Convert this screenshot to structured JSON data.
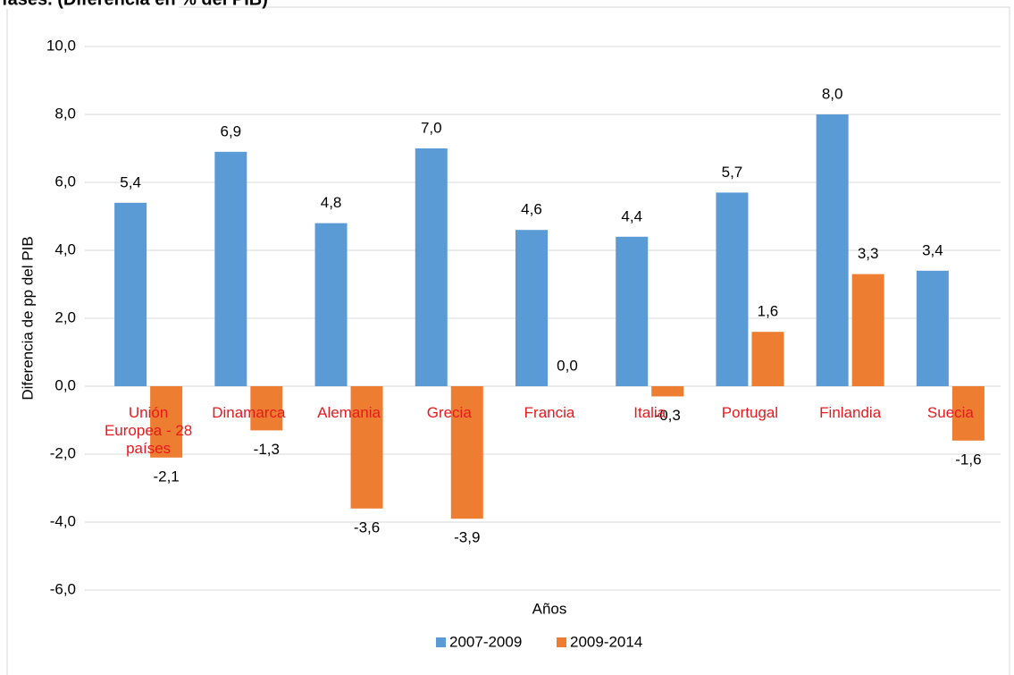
{
  "chart_data": {
    "type": "bar",
    "title": "fases. (Diferencia en % del PIB)",
    "y_label": "Diferencia de pp del PIB",
    "x_label": "Años",
    "categories": [
      "Unión Europea - 28 países",
      "Dinamarca",
      "Alemania",
      "Grecia",
      "Francia",
      "Italia",
      "Portugal",
      "Finlandia",
      "Suecia"
    ],
    "series": [
      {
        "name": "2007-2009",
        "color": "#5b9bd5",
        "values": [
          5.4,
          6.9,
          4.8,
          7.0,
          4.6,
          4.4,
          5.7,
          8.0,
          3.4
        ],
        "value_labels": [
          "5,4",
          "6,9",
          "4,8",
          "7,0",
          "4,6",
          "4,4",
          "5,7",
          "8,0",
          "3,4"
        ]
      },
      {
        "name": "2009-2014",
        "color": "#ed7d31",
        "values": [
          -2.1,
          -1.3,
          -3.6,
          -3.9,
          0.0,
          -0.3,
          1.6,
          3.3,
          -1.6
        ],
        "value_labels": [
          "-2,1",
          "-1,3",
          "-3,6",
          "-3,9",
          "0,0",
          "-0,3",
          "1,6",
          "3,3",
          "-1,6"
        ]
      }
    ],
    "ylim": [
      -6,
      10
    ],
    "yticks": [
      {
        "value": -6,
        "label": "-6,0"
      },
      {
        "value": -4,
        "label": "-4,0"
      },
      {
        "value": -2,
        "label": "-2,0"
      },
      {
        "value": 0,
        "label": "0,0"
      },
      {
        "value": 2,
        "label": "2,0"
      },
      {
        "value": 4,
        "label": "4,0"
      },
      {
        "value": 6,
        "label": "6,0"
      },
      {
        "value": 8,
        "label": "8,0"
      },
      {
        "value": 10,
        "label": "10,0"
      }
    ],
    "grid": true,
    "legend": "bottom"
  }
}
